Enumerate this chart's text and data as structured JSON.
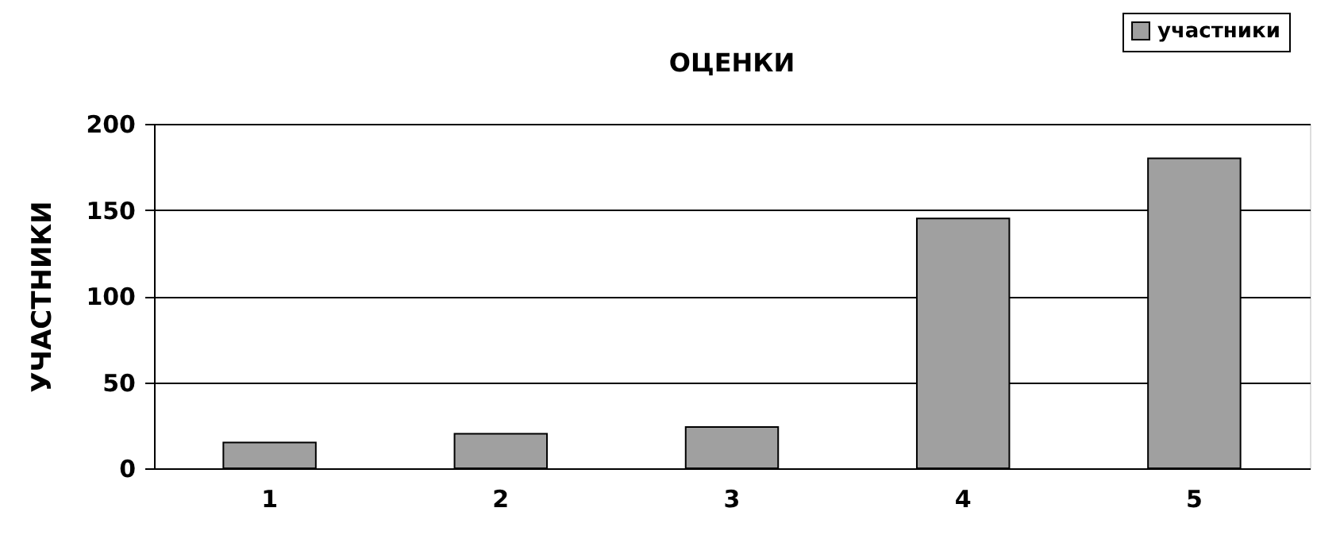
{
  "chart_data": {
    "type": "bar",
    "title": "ОЦЕНКИ",
    "ylabel": "УЧАСТНИКИ",
    "categories": [
      "1",
      "2",
      "3",
      "4",
      "5"
    ],
    "series": [
      {
        "name": "участники",
        "color": "#a0a0a0",
        "values": [
          15,
          20,
          24,
          145,
          180
        ]
      }
    ],
    "ylim": [
      0,
      200
    ],
    "yticks": [
      0,
      50,
      100,
      150,
      200
    ],
    "grid": "y",
    "legend": "top right"
  }
}
